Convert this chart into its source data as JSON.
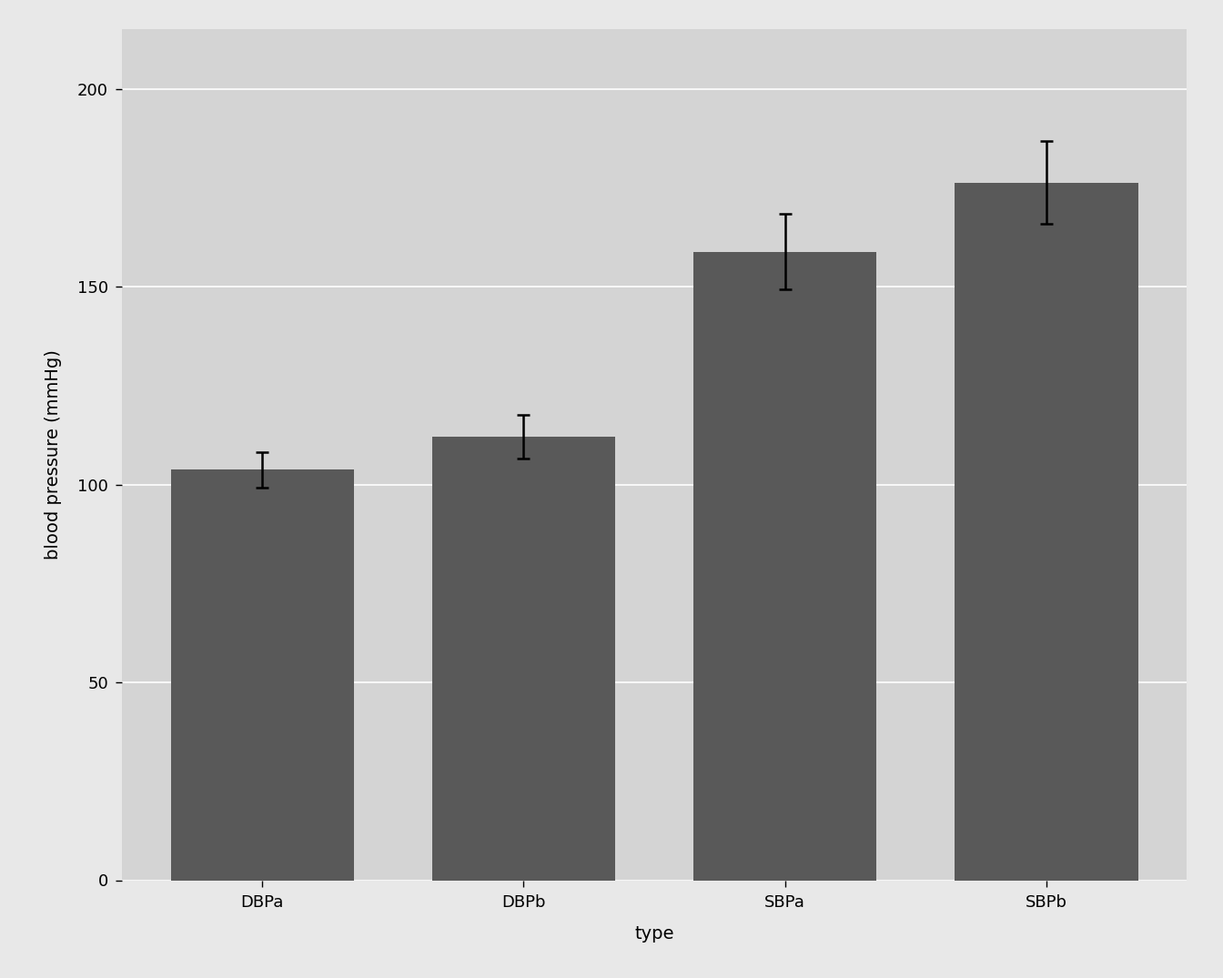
{
  "categories": [
    "DBPa",
    "DBPb",
    "SBPa",
    "SBPb"
  ],
  "means": [
    103.7,
    112.0,
    158.8,
    176.3
  ],
  "errors": [
    4.5,
    5.5,
    9.5,
    10.5
  ],
  "bar_color": "#595959",
  "figure_background_color": "#e8e8e8",
  "panel_color": "#d4d4d4",
  "grid_color": "#ffffff",
  "xlabel": "type",
  "ylabel": "blood pressure (mmHg)",
  "ylim": [
    0,
    215
  ],
  "yticks": [
    0,
    50,
    100,
    150,
    200
  ],
  "axis_label_fontsize": 14,
  "tick_fontsize": 13,
  "bar_width": 0.7,
  "cap_size": 5,
  "errorbar_linewidth": 1.8,
  "errorbar_capthick": 1.8
}
